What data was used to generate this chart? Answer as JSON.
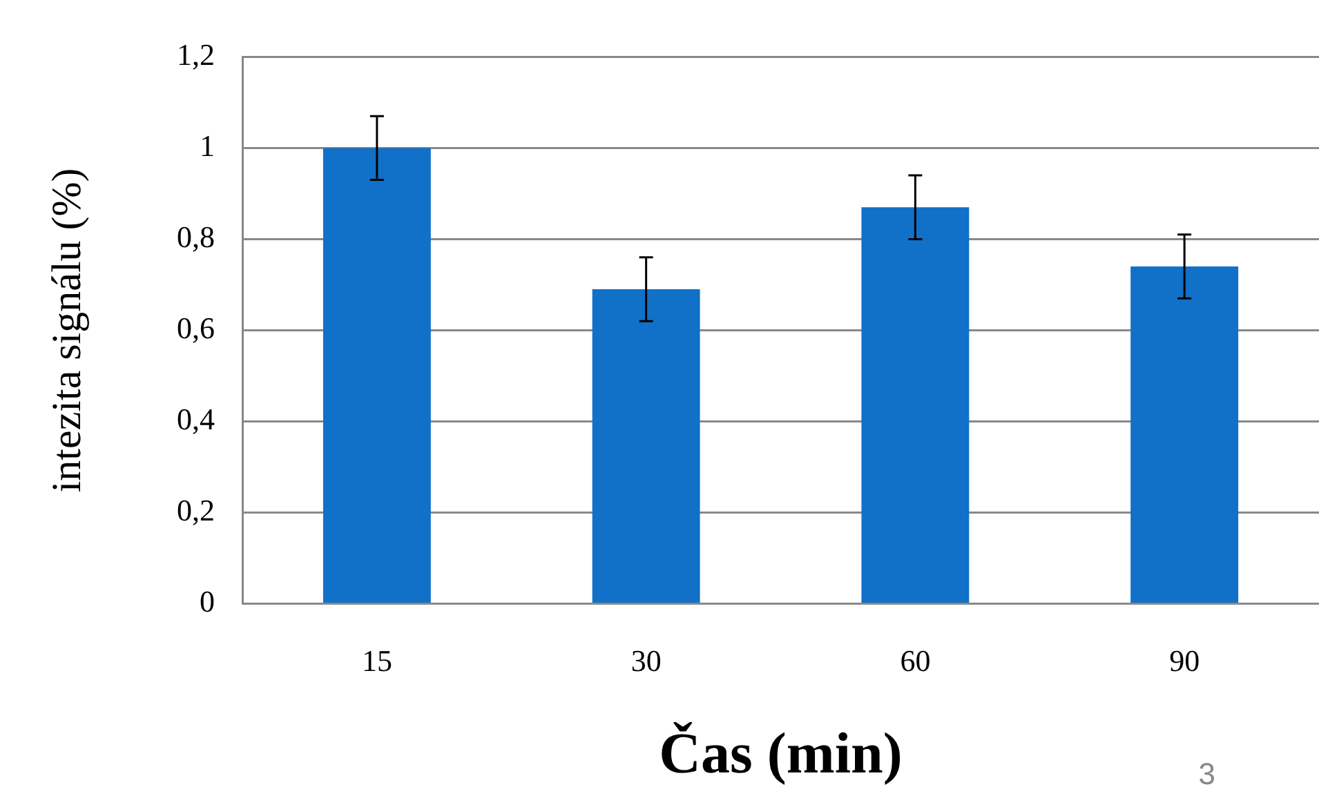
{
  "chart_data": {
    "type": "bar",
    "categories": [
      "15",
      "30",
      "60",
      "90"
    ],
    "values": [
      1.0,
      0.69,
      0.87,
      0.74
    ],
    "errors": [
      0.07,
      0.07,
      0.07,
      0.07
    ],
    "color": "#1170c8",
    "ylim": [
      0,
      1.2
    ],
    "yticks": [
      {
        "value": 0,
        "label": "0"
      },
      {
        "value": 0.2,
        "label": "0,2"
      },
      {
        "value": 0.4,
        "label": "0,4"
      },
      {
        "value": 0.6,
        "label": "0,6"
      },
      {
        "value": 0.8,
        "label": "0,8"
      },
      {
        "value": 1,
        "label": "1"
      },
      {
        "value": 1.2,
        "label": "1,2"
      }
    ],
    "ylabel": "intezita signálu (%)",
    "xlabel": "Čas (min)",
    "annotations": [
      "3"
    ],
    "grid": "y"
  }
}
